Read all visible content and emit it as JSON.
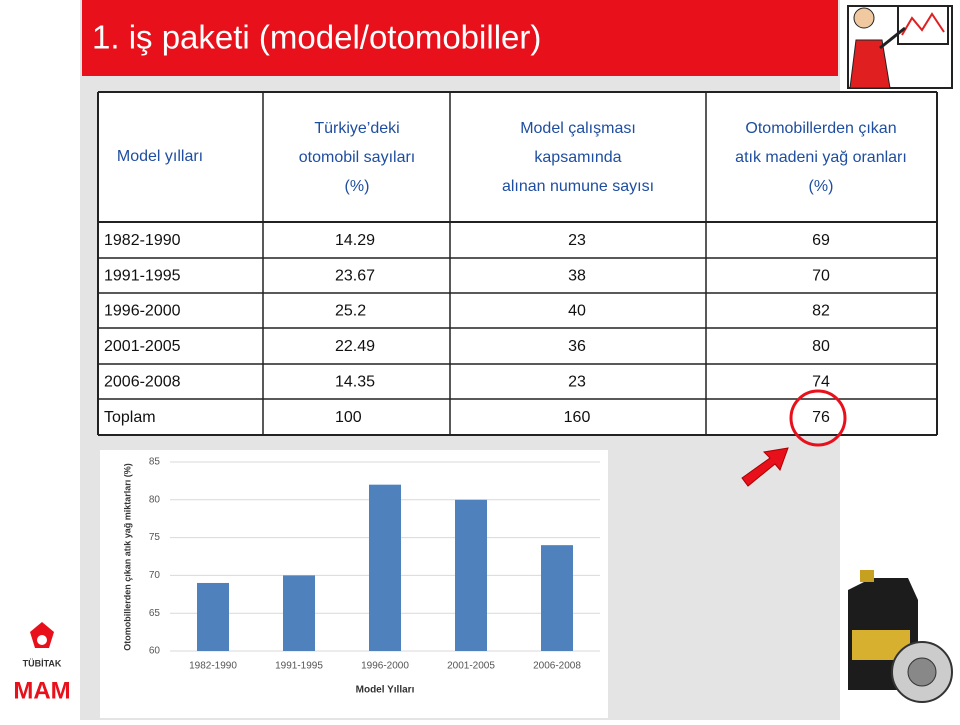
{
  "title": "1. iş paketi (model/otomobiller)",
  "table": {
    "header": [
      [
        "Model yılları"
      ],
      [
        "Türkiye’deki",
        "otomobil sayıları",
        "(%)"
      ],
      [
        "Model çalışması",
        "kapsamında",
        "alınan numune sayısı"
      ],
      [
        "Otomobillerden çıkan",
        "atık madeni yağ oranları",
        "(%)"
      ]
    ],
    "rows": [
      [
        "1982-1990",
        14.29,
        23,
        69
      ],
      [
        "1991-1995",
        23.67,
        38,
        70
      ],
      [
        "1996-2000",
        25.2,
        40,
        82
      ],
      [
        "2001-2005",
        22.49,
        36,
        80
      ],
      [
        "2006-2008",
        14.35,
        23,
        74
      ],
      [
        "Toplam",
        100,
        160,
        76
      ]
    ]
  },
  "logo": {
    "top": "TÜBİTAK",
    "bottom": "MAM"
  },
  "chart_data": {
    "type": "bar",
    "categories": [
      "1982-1990",
      "1991-1995",
      "1996-2000",
      "2001-2005",
      "2006-2008"
    ],
    "values": [
      69,
      70,
      82,
      80,
      74
    ],
    "color": "#4f81bd",
    "ylim": [
      60,
      85
    ],
    "yticks": [
      60,
      65,
      70,
      75,
      80,
      85
    ],
    "grid": true,
    "x_label": "Model Yılları",
    "y_label": "Otomobillerden çıkan atık yağ miktarları (%)"
  }
}
